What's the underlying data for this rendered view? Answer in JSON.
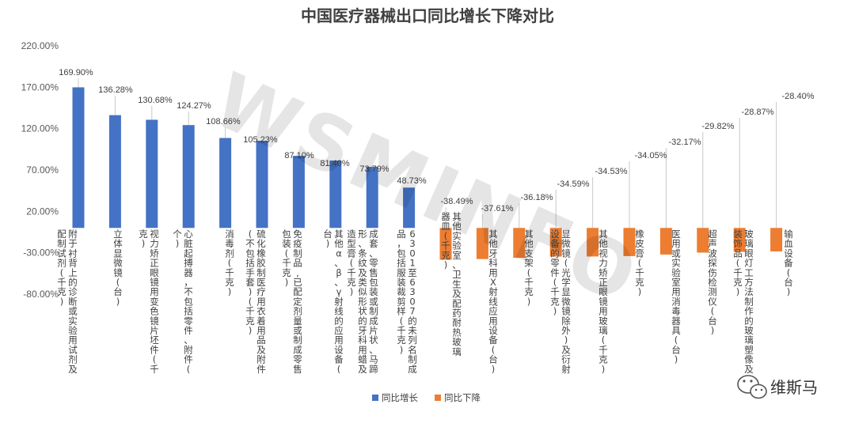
{
  "chart_data": {
    "type": "bar",
    "title": "中国医疗器械出口同比增长下降对比",
    "ylim": [
      -80,
      220
    ],
    "yticks": [
      -80,
      -30,
      20,
      70,
      120,
      170,
      220
    ],
    "ytick_labels": [
      "-80.00%",
      "-30.00%",
      "20.00%",
      "70.00%",
      "120.00%",
      "170.00%",
      "220.00%"
    ],
    "grid": false,
    "legend_position": "bottom",
    "series": [
      {
        "name": "同比增长",
        "color": "#4472C4"
      },
      {
        "name": "同比下降",
        "color": "#ED7D31"
      }
    ],
    "categories": [
      "附于衬背上的诊断或实验用试剂及配制试剂(千克)",
      "立体显微镜(台)",
      "视力矫正眼镜用变色镜片坯件(千克)",
      "心脏起搏器，不包括零件、附件(个)",
      "消毒剂(千克)",
      "硫化橡胶制医疗用衣着用品及附件(不包括手套)(千克)",
      "免疫制品,已配定剂量或制成零售包装(千克)",
      "其他α、β、γ射线的应用设备(台)",
      "成套、零售包装或制成片状、马蹄形、条纹及类似形状的牙科用蜡及造型膏(千克)",
      "6301至6307的未列名制成品，包括服装裁剪样(千克)",
      "其他实验室、卫生及配药耐热玻璃器皿(千克)",
      "其他牙科用X射线应用设备(台)",
      "其他支架(千克)",
      "显微镜(光学显微镜除外)及衍射设备的零件(千克)",
      "其他视力矫正眼镜用玻璃(千克)",
      "橡皮膏(千克)",
      "医用或实验室用消毒器具(台)",
      "超声波探伤检测仪(台)",
      "玻璃眼灯工方法制作的玻璃塑像及装饰品(千克)",
      "输血设备(台)"
    ],
    "values": [
      169.9,
      136.28,
      130.68,
      124.27,
      108.66,
      105.23,
      87.1,
      81.4,
      73.79,
      48.73,
      -38.49,
      -37.61,
      -36.18,
      -34.59,
      -34.53,
      -34.05,
      -32.17,
      -29.82,
      -28.87,
      -28.4
    ],
    "data_labels": [
      "169.90%",
      "136.28%",
      "130.68%",
      "124.27%",
      "108.66%",
      "105.23%",
      "87.10%",
      "81.40%",
      "73.79%",
      "48.73%",
      "-38.49%",
      "-37.61%",
      "-36.18%",
      "-34.59%",
      "-34.53%",
      "-34.05%",
      "-32.17%",
      "-29.82%",
      "-28.87%",
      "-28.40%"
    ]
  },
  "watermark": "WSMINFO",
  "brand": {
    "text": "维斯马",
    "icon": "wechat-icon"
  }
}
